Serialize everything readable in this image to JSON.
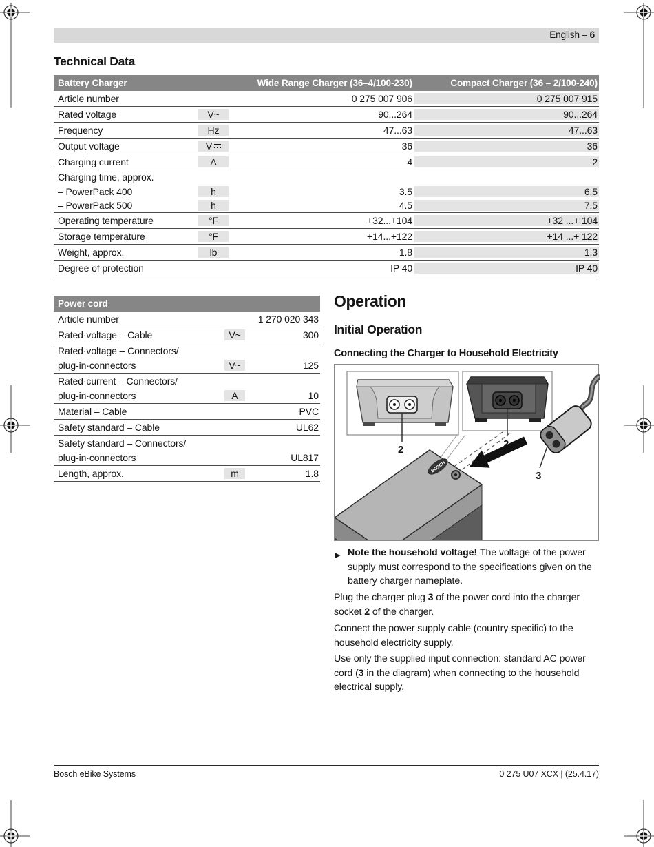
{
  "page": {
    "header_language": "English – ",
    "header_page": "6",
    "footer_left": "Bosch eBike Systems",
    "footer_right": "0 275 U07 XCX | (25.4.17)"
  },
  "technical_data_title": "Technical Data",
  "battery_table": {
    "headers": [
      "Battery Charger",
      "Wide Range Charger (36–4/100-230)",
      "Compact Charger (36 – 2/100-240)"
    ],
    "rows": [
      {
        "lines": [
          [
            "Article number",
            "",
            "0 275 007 906",
            "0 275 007 915"
          ]
        ]
      },
      {
        "lines": [
          [
            "Rated voltage",
            "V~",
            "90...264",
            "90...264"
          ]
        ]
      },
      {
        "lines": [
          [
            "Frequency",
            "Hz",
            "47...63",
            "47...63"
          ]
        ]
      },
      {
        "lines": [
          [
            "Output voltage",
            "V⎓",
            "36",
            "36"
          ]
        ]
      },
      {
        "lines": [
          [
            "Charging current",
            "A",
            "4",
            "2"
          ]
        ]
      },
      {
        "lines": [
          [
            "Charging time, approx.",
            "",
            "",
            ""
          ],
          [
            "– PowerPack 400",
            "h",
            "3.5",
            "6.5"
          ],
          [
            "– PowerPack 500",
            "h",
            "4.5",
            "7.5"
          ]
        ]
      },
      {
        "lines": [
          [
            "Operating temperature",
            "°F",
            "+32...+104",
            "+32 ...+ 104"
          ]
        ]
      },
      {
        "lines": [
          [
            "Storage temperature",
            "°F",
            "+14...+122",
            "+14 ...+ 122"
          ]
        ]
      },
      {
        "lines": [
          [
            "Weight, approx.",
            "lb",
            "1.8",
            "1.3"
          ]
        ]
      },
      {
        "lines": [
          [
            "Degree of protection",
            "",
            "IP 40",
            "IP 40"
          ]
        ]
      }
    ]
  },
  "power_cord_table": {
    "title": "Power cord",
    "rows": [
      {
        "lines": [
          [
            "Article number",
            "",
            "1 270 020 343"
          ]
        ]
      },
      {
        "lines": [
          [
            "Rated·voltage – Cable",
            "V~",
            "300"
          ]
        ]
      },
      {
        "lines": [
          [
            "Rated·voltage – Connectors/",
            "",
            ""
          ],
          [
            "plug-in·connectors",
            "V~",
            "125"
          ]
        ]
      },
      {
        "lines": [
          [
            "Rated·current  – Connectors/",
            "",
            ""
          ],
          [
            "plug-in·connectors",
            "A",
            "10"
          ]
        ]
      },
      {
        "lines": [
          [
            "Material  – Cable",
            "",
            "PVC"
          ]
        ]
      },
      {
        "lines": [
          [
            "Safety standard – Cable",
            "",
            "UL62"
          ]
        ]
      },
      {
        "lines": [
          [
            "Safety standard – Connectors/",
            "",
            ""
          ],
          [
            "plug-in·connectors",
            "",
            "UL817"
          ]
        ]
      },
      {
        "lines": [
          [
            "Length, approx.",
            "m",
            "1.8"
          ]
        ]
      }
    ]
  },
  "operation": {
    "title": "Operation",
    "subtitle": "Initial Operation",
    "subsubtitle": "Connecting the Charger to Household Electricity",
    "note": {
      "bullet": "▶",
      "segments": [
        {
          "t": "Note the household voltage! ",
          "b": true
        },
        {
          "t": "The voltage of the power supply must correspond to the specifications given on the battery charger nameplate.",
          "b": false
        }
      ]
    },
    "p_plug": {
      "segments": [
        {
          "t": "Plug the charger plug ",
          "b": false
        },
        {
          "t": "3",
          "b": true
        },
        {
          "t": " of the power cord into the charger socket ",
          "b": false
        },
        {
          "t": "2",
          "b": true
        },
        {
          "t": " of the charger.",
          "b": false
        }
      ]
    },
    "p_connect": {
      "segments": [
        {
          "t": "Connect the power supply cable (country-specific) to the household electricity supply.",
          "b": false
        }
      ]
    },
    "p_use": {
      "segments": [
        {
          "t": "Use only the supplied input connection: standard AC power cord (",
          "b": false
        },
        {
          "t": "3",
          "b": true
        },
        {
          "t": " in the diagram) when connecting to the household electrical supply.",
          "b": false
        }
      ]
    }
  },
  "figure": {
    "label_left_socket": "2",
    "label_right_socket": "2",
    "label_plug": "3",
    "brand": "BOSCH"
  },
  "colors": {
    "band": "#d8d8d8",
    "table_header": "#868686",
    "cell_shade": "#e4e4e4",
    "row_rule": "#4d4d4d"
  }
}
